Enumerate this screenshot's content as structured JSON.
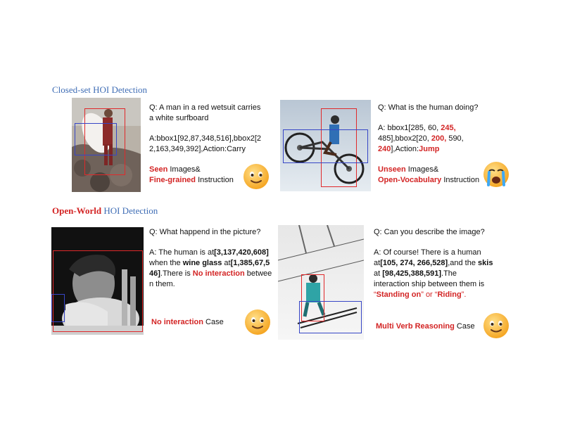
{
  "sections": {
    "closed_set": "Closed-set HOI Detection",
    "open_world_highlight": "Open-World",
    "open_world_rest": " HOI Detection"
  },
  "panels": {
    "surf": {
      "q_line1": "Q: A man in a red wetsuit carries",
      "q_line2": "a white surfboard",
      "a_line1": "A:bbox1[92,87,348,516],bbox2[2",
      "a_line2": "2,163,349,392],Action:Carry",
      "tag1_red": "Seen",
      "tag1_rest": " Images&",
      "tag2_red": "Fine-grained",
      "tag2_rest": " Instruction",
      "emoji": "smile-face-icon"
    },
    "bike": {
      "q_line1": "Q: What is the human doing?",
      "a_line1": "A: bbox1[285, 60, ",
      "a_line1_red": "245,",
      "a_line2": "485],bbox2[20, ",
      "a_line2_red": "200,",
      "a_line2_rest": " 590,",
      "a_line3_red": "240",
      "a_line3_mid": "],Action:",
      "a_line3_red2": "Jump",
      "tag1_red": "Unseen",
      "tag1_rest": " Images&",
      "tag2_red": "Open-Vocabulary",
      "tag2_rest": " Instruction",
      "emoji": "crying-face-icon"
    },
    "man": {
      "q_line1": "Q: What happend in the picture?",
      "a_p1": "A: The human is  at",
      "a_b1": "[3,137,420,608]",
      "a_p2": "when the ",
      "a_b2": "wine glass",
      "a_p3": " at",
      "a_b3": "[1,385,67,5",
      "a_b4": "46]",
      "a_p4": ".There is ",
      "a_red1": "No interaction",
      "a_p5": " betwee",
      "a_p6": "n them.",
      "tag_red": "No interaction",
      "tag_rest": " Case",
      "emoji": "smile-face-icon"
    },
    "ski": {
      "q_line1": "Q: Can you describe the image?",
      "a_l1": "A: Of course! There is a human",
      "a_l2_p": "at",
      "a_l2_b": "[105, 274, 266,528]",
      "a_l2_p2": ",and the ",
      "a_l2_b2": "skis",
      "a_l3_p": "at ",
      "a_l3_b": "[98,425,388,591]",
      "a_l3_p2": ".The",
      "a_l4": "interaction ship between them is",
      "a_l5_q1": "“",
      "a_l5_r1": "Standing on",
      "a_l5_q2": "” or “",
      "a_l5_r2": "Riding",
      "a_l5_q3": "”.",
      "tag_red": "Multi Verb Reasoning",
      "tag_rest": " Case",
      "emoji": "smile-face-icon"
    }
  }
}
